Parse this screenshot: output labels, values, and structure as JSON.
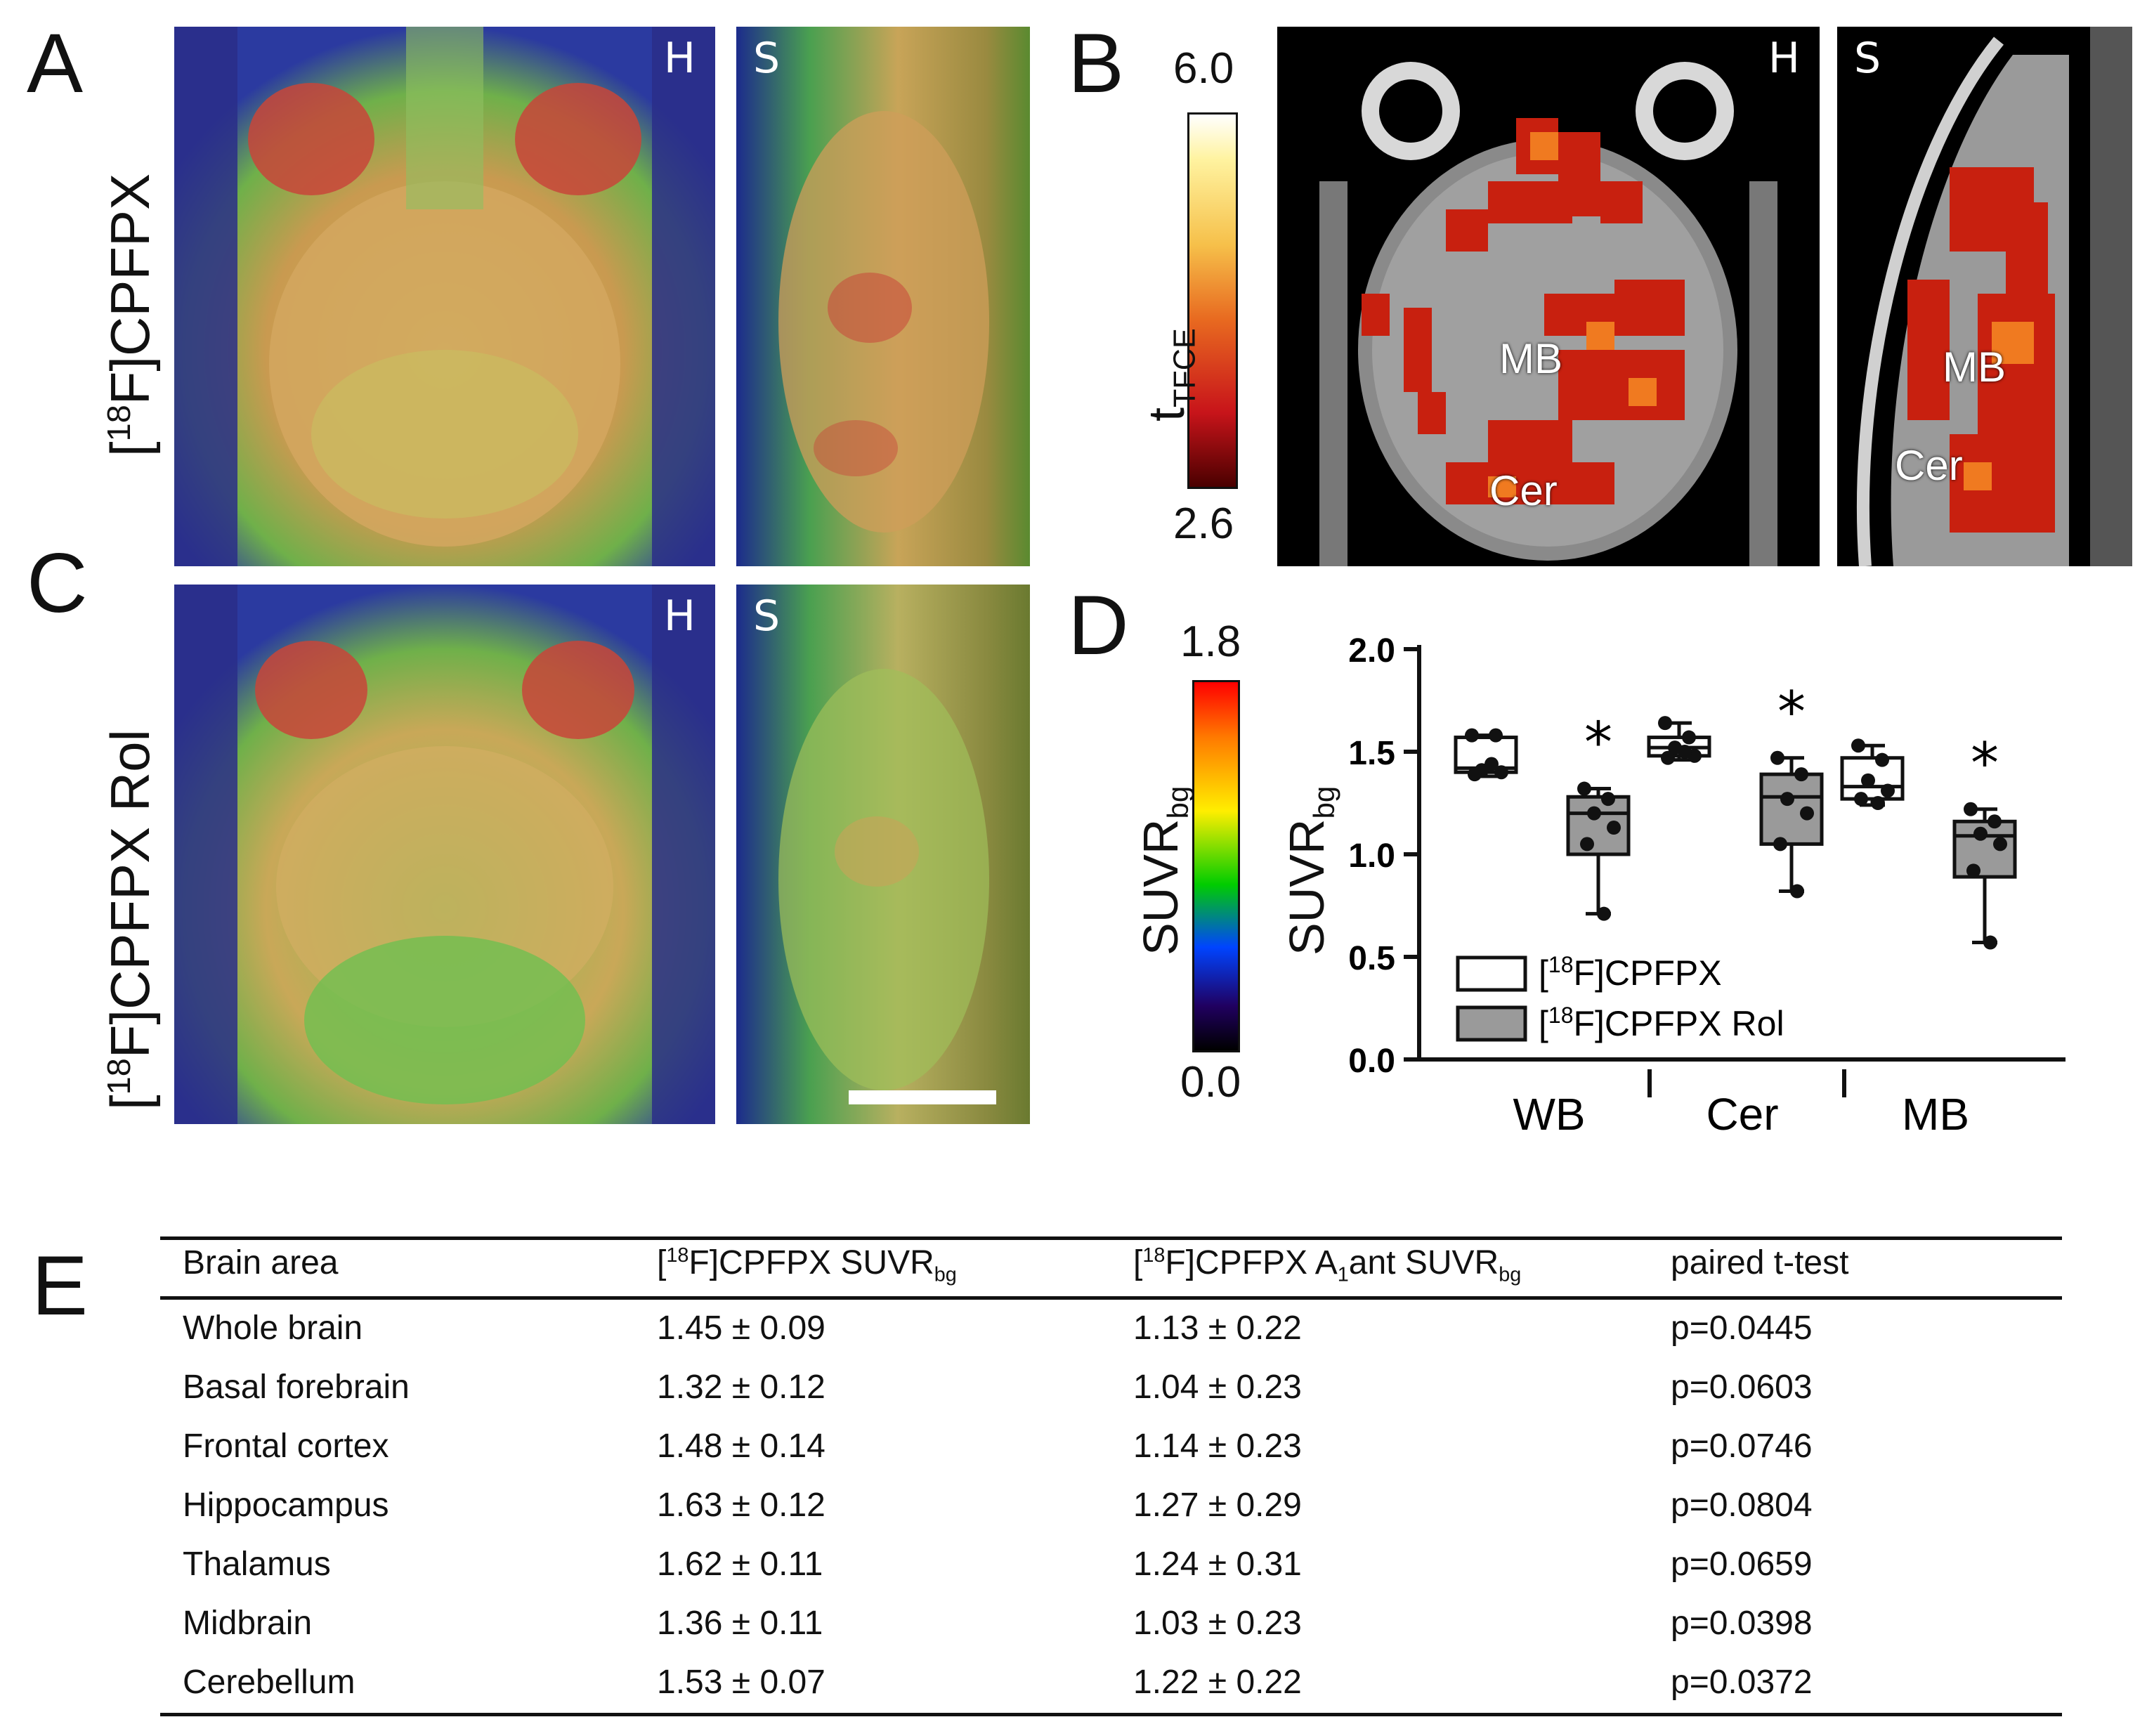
{
  "panels": {
    "A": "A",
    "B": "B",
    "C": "C",
    "D": "D",
    "E": "E"
  },
  "row_labels": {
    "a_prefix": "[",
    "a_sup": "18",
    "a_text": "F]CPFPX",
    "c_prefix": "[",
    "c_sup": "18",
    "c_text": "F]CPFPX Rol"
  },
  "view_letters": {
    "horizontal": "H",
    "sagittal": "S"
  },
  "panel_b": {
    "colorbar_max": "6.0",
    "colorbar_min": "2.6",
    "colorbar_label": "t",
    "colorbar_label_sub": "TFCE",
    "regions": {
      "mb": "MB",
      "cer": "Cer"
    }
  },
  "panel_d_colorbar": {
    "max": "1.8",
    "min": "0.0",
    "label": "SUVR",
    "label_sub": "bg"
  },
  "chart_data": {
    "type": "box",
    "ylabel": "SUVR",
    "ylabel_sub": "bg",
    "ylim": [
      0.0,
      2.0
    ],
    "yticks": [
      "0.0",
      "0.5",
      "1.0",
      "1.5",
      "2.0"
    ],
    "categories": [
      "WB",
      "Cer",
      "MB"
    ],
    "legend": {
      "s1_prefix": "[",
      "s1_sup": "18",
      "s1_text": "F]CPFPX",
      "s2_prefix": "[",
      "s2_sup": "18",
      "s2_text": "F]CPFPX Rol"
    },
    "significance": "*",
    "series": [
      {
        "name": "[18F]CPFPX",
        "color": "#ffffff",
        "boxes": [
          {
            "min": 1.38,
            "q1": 1.4,
            "median": 1.42,
            "q3": 1.57,
            "max": 1.58,
            "points": [
              1.58,
              1.58,
              1.41,
              1.4,
              1.39,
              1.44
            ]
          },
          {
            "min": 1.46,
            "q1": 1.48,
            "median": 1.52,
            "q3": 1.57,
            "max": 1.64,
            "points": [
              1.64,
              1.57,
              1.52,
              1.48,
              1.47,
              1.5
            ]
          },
          {
            "min": 1.24,
            "q1": 1.27,
            "median": 1.33,
            "q3": 1.47,
            "max": 1.53,
            "points": [
              1.53,
              1.46,
              1.36,
              1.31,
              1.27,
              1.25
            ]
          }
        ]
      },
      {
        "name": "[18F]CPFPX Rol",
        "color": "#9a9a9a",
        "boxes": [
          {
            "min": 0.71,
            "q1": 1.0,
            "median": 1.2,
            "q3": 1.28,
            "max": 1.32,
            "points": [
              1.32,
              1.27,
              1.2,
              1.13,
              1.05,
              0.71
            ]
          },
          {
            "min": 0.82,
            "q1": 1.05,
            "median": 1.28,
            "q3": 1.39,
            "max": 1.47,
            "points": [
              1.47,
              1.39,
              1.27,
              1.2,
              1.05,
              0.82
            ]
          },
          {
            "min": 0.57,
            "q1": 0.89,
            "median": 1.09,
            "q3": 1.16,
            "max": 1.22,
            "points": [
              1.22,
              1.16,
              1.1,
              1.05,
              0.92,
              0.57
            ]
          }
        ]
      }
    ]
  },
  "table": {
    "headers": {
      "area": "Brain area",
      "c1_prefix": "[",
      "c1_sup": "18",
      "c1_text": "F]CPFPX SUVR",
      "c1_sub": "bg",
      "c2_prefix": "[",
      "c2_sup": "18",
      "c2_text": "F]CPFPX A",
      "c2_sub1": "1",
      "c2_text2": "ant SUVR",
      "c2_sub2": "bg",
      "test": "paired t-test"
    },
    "rows": [
      {
        "area": "Whole brain",
        "v1": "1.45  ± 0.09",
        "v2": "1.13  ± 0.22",
        "p": "p=0.0445"
      },
      {
        "area": "Basal forebrain",
        "v1": "1.32  ± 0.12",
        "v2": "1.04  ± 0.23",
        "p": "p=0.0603"
      },
      {
        "area": "Frontal cortex",
        "v1": "1.48  ± 0.14",
        "v2": "1.14  ± 0.23",
        "p": "p=0.0746"
      },
      {
        "area": "Hippocampus",
        "v1": "1.63  ± 0.12",
        "v2": "1.27  ± 0.29",
        "p": "p=0.0804"
      },
      {
        "area": "Thalamus",
        "v1": "1.62  ± 0.11",
        "v2": "1.24  ± 0.31",
        "p": "p=0.0659"
      },
      {
        "area": "Midbrain",
        "v1": "1.36  ± 0.11",
        "v2": "1.03  ± 0.23",
        "p": "p=0.0398"
      },
      {
        "area": "Cerebellum",
        "v1": "1.53  ± 0.07",
        "v2": "1.22  ± 0.22",
        "p": "p=0.0372"
      }
    ]
  }
}
